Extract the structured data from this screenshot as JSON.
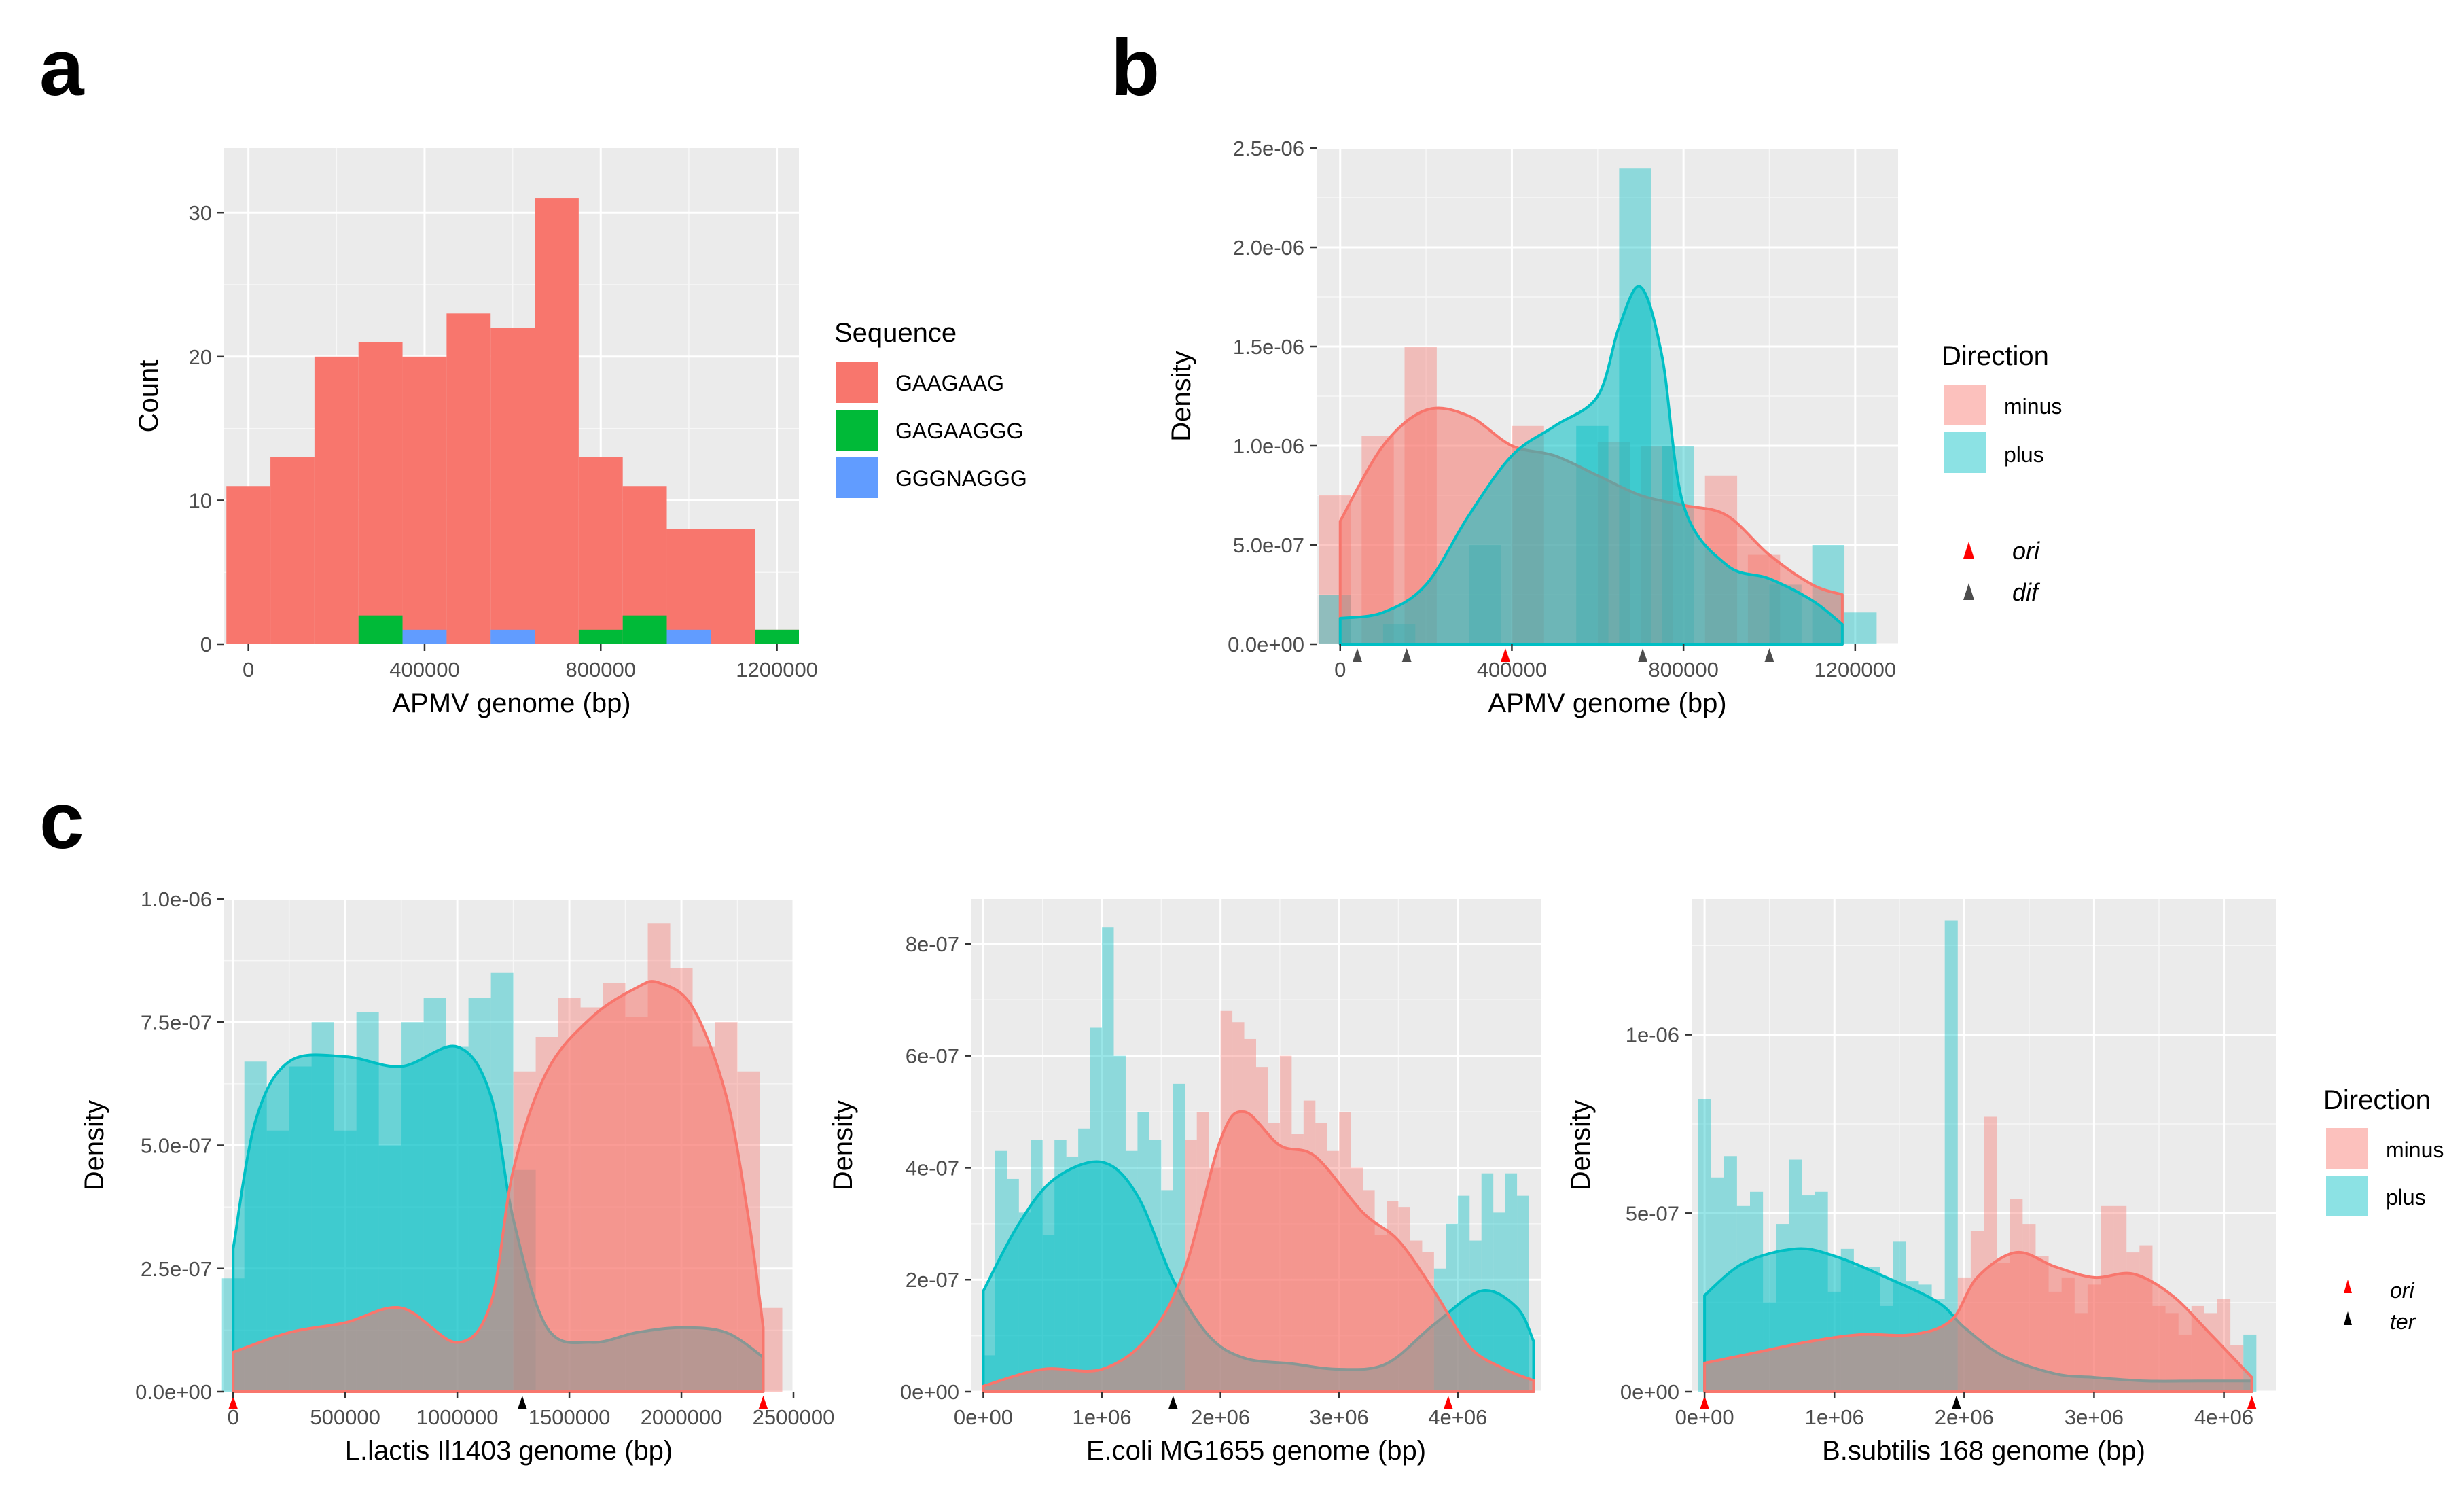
{
  "panel_labels": {
    "a": "a",
    "b": "b",
    "c": "c"
  },
  "colors": {
    "panel_bg": "#ebebeb",
    "grid": "#ffffff",
    "minus": "#f8766d",
    "plus": "#00bfc4",
    "gaagaag": "#f8766d",
    "gagaaggg": "#00ba38",
    "gggnaggg": "#619cff",
    "ori": "#ff0000",
    "dif": "#4d4d4d",
    "ter": "#000000"
  },
  "chart_data": [
    {
      "id": "a",
      "type": "bar",
      "title": "",
      "xlabel": "APMV genome (bp)",
      "ylabel": "Count",
      "xlim": [
        -55000,
        1250000
      ],
      "ylim": [
        0,
        34.5
      ],
      "xticks": [
        0,
        400000,
        800000,
        1200000
      ],
      "xtick_labels": [
        "0",
        "400000",
        "800000",
        "1200000"
      ],
      "yticks": [
        0,
        10,
        20,
        30
      ],
      "ytick_labels": [
        "0",
        "10",
        "20",
        "30"
      ],
      "legend": {
        "title": "Sequence",
        "position": "right",
        "items": [
          "GAAGAAG",
          "GAGAAGGG",
          "GGGNAGGG"
        ]
      },
      "bin_width": 100000,
      "bin_starts": [
        -50000,
        50000,
        150000,
        250000,
        350000,
        450000,
        550000,
        650000,
        750000,
        850000,
        950000,
        1050000,
        1150000
      ],
      "series": [
        {
          "name": "GAAGAAG",
          "values": [
            11,
            13,
            20,
            21,
            20,
            23,
            22,
            31,
            13,
            11,
            8,
            8,
            1
          ]
        },
        {
          "name": "GAGAAGGG",
          "values": [
            0,
            0,
            0,
            2,
            0,
            0,
            0,
            0,
            1,
            2,
            0,
            0,
            1
          ]
        },
        {
          "name": "GGGNAGGG",
          "values": [
            0,
            0,
            0,
            0,
            1,
            0,
            1,
            0,
            0,
            0,
            1,
            0,
            0
          ]
        }
      ]
    },
    {
      "id": "b",
      "type": "area",
      "title": "",
      "xlabel": "APMV genome (bp)",
      "ylabel": "Density",
      "xlim": [
        -55000,
        1300000
      ],
      "ylim": [
        0,
        2.5e-06
      ],
      "xticks": [
        0,
        400000,
        800000,
        1200000
      ],
      "xtick_labels": [
        "0",
        "400000",
        "800000",
        "1200000"
      ],
      "yticks": [
        0,
        5e-07,
        1e-06,
        1.5e-06,
        2e-06,
        2.5e-06
      ],
      "ytick_labels": [
        "0.0e+00",
        "5.0e-07",
        "1.0e-06",
        "1.5e-06",
        "2.0e-06",
        "2.5e-06"
      ],
      "legend": {
        "title": "Direction",
        "position": "right",
        "items": [
          "minus",
          "plus"
        ]
      },
      "markers": [
        {
          "label": "ori",
          "color": "#ff0000",
          "positions": [
            385000
          ]
        },
        {
          "label": "dif",
          "color": "#4d4d4d",
          "positions": [
            40000,
            155000,
            705000,
            1000000
          ]
        }
      ],
      "bin_width": 75000,
      "hist": [
        {
          "name": "minus",
          "starts": [
            -50000,
            50000,
            150000,
            400000,
            600000,
            700000,
            850000,
            950000
          ],
          "values": [
            7.5e-07,
            1.05e-06,
            1.5e-06,
            1.1e-06,
            1.02e-06,
            1e-06,
            8.5e-07,
            4.5e-07
          ]
        },
        {
          "name": "plus",
          "starts": [
            -50000,
            100000,
            300000,
            550000,
            650000,
            750000,
            1000000,
            1100000,
            1175000
          ],
          "values": [
            2.5e-07,
            1e-07,
            5e-07,
            1.1e-06,
            2.4e-06,
            1e-06,
            3e-07,
            5e-07,
            1.6e-07
          ]
        }
      ],
      "density": [
        {
          "name": "minus",
          "x": [
            0,
            100000,
            200000,
            300000,
            400000,
            500000,
            600000,
            700000,
            800000,
            900000,
            1000000,
            1100000,
            1170000
          ],
          "y": [
            6.2e-07,
            1e-06,
            1.18e-06,
            1.15e-06,
            1e-06,
            9.5e-07,
            8.5e-07,
            7.5e-07,
            7e-07,
            6.5e-07,
            4.5e-07,
            3e-07,
            2.5e-07
          ]
        },
        {
          "name": "plus",
          "x": [
            0,
            100000,
            200000,
            300000,
            400000,
            500000,
            600000,
            650000,
            700000,
            750000,
            800000,
            900000,
            1000000,
            1100000,
            1170000
          ],
          "y": [
            1.3e-07,
            1.6e-07,
            3e-07,
            6.5e-07,
            9.5e-07,
            1.1e-06,
            1.25e-06,
            1.6e-06,
            1.8e-06,
            1.45e-06,
            7e-07,
            4e-07,
            3.3e-07,
            2.2e-07,
            1e-07
          ]
        }
      ]
    },
    {
      "id": "c1",
      "type": "area",
      "title": "",
      "xlabel": "L.lactis Il1403 genome (bp)",
      "ylabel": "Density",
      "xlim": [
        -40000,
        2500000
      ],
      "ylim": [
        0,
        1e-06
      ],
      "xticks": [
        0,
        500000,
        1000000,
        1500000,
        2000000,
        2500000
      ],
      "xtick_labels": [
        "0",
        "500000",
        "1000000",
        "1500000",
        "2000000",
        "2500000"
      ],
      "yticks": [
        0,
        2.5e-07,
        5e-07,
        7.5e-07,
        1e-06
      ],
      "ytick_labels": [
        "0.0e+00",
        "2.5e-07",
        "5.0e-07",
        "7.5e-07",
        "1.0e-06"
      ],
      "markers": [
        {
          "label": "ori",
          "color": "#ff0000",
          "positions": [
            0,
            2365000
          ]
        },
        {
          "label": "ter",
          "color": "#000000",
          "positions": [
            1290000
          ]
        }
      ],
      "bin_width": 100000,
      "hist": [
        {
          "name": "plus",
          "starts": [
            -50000,
            50000,
            150000,
            250000,
            350000,
            450000,
            550000,
            650000,
            750000,
            850000,
            950000,
            1050000,
            1150000,
            1250000
          ],
          "values": [
            2.3e-07,
            6.7e-07,
            5.3e-07,
            6.6e-07,
            7.5e-07,
            5.3e-07,
            7.7e-07,
            5e-07,
            7.5e-07,
            8e-07,
            7e-07,
            8e-07,
            8.5e-07,
            4.5e-07
          ]
        },
        {
          "name": "minus",
          "starts": [
            1250000,
            1350000,
            1450000,
            1550000,
            1650000,
            1750000,
            1850000,
            1950000,
            2050000,
            2150000,
            2250000,
            2350000
          ],
          "values": [
            6.5e-07,
            7.2e-07,
            8e-07,
            7.8e-07,
            8.3e-07,
            7.6e-07,
            9.5e-07,
            8.6e-07,
            7e-07,
            7.5e-07,
            6.5e-07,
            1.7e-07
          ]
        }
      ],
      "density": [
        {
          "name": "plus",
          "x": [
            0,
            100000,
            250000,
            500000,
            750000,
            1000000,
            1150000,
            1250000,
            1400000,
            1600000,
            1800000,
            2000000,
            2200000,
            2365000
          ],
          "y": [
            2.9e-07,
            5.5e-07,
            6.7e-07,
            6.8e-07,
            6.6e-07,
            7e-07,
            6e-07,
            3.5e-07,
            1.3e-07,
            1e-07,
            1.2e-07,
            1.3e-07,
            1.2e-07,
            7e-08
          ]
        },
        {
          "name": "minus",
          "x": [
            0,
            250000,
            500000,
            750000,
            1000000,
            1150000,
            1250000,
            1400000,
            1600000,
            1800000,
            1900000,
            2050000,
            2200000,
            2300000,
            2365000
          ],
          "y": [
            8e-08,
            1.2e-07,
            1.4e-07,
            1.7e-07,
            1e-07,
            1.8e-07,
            4.5e-07,
            6.5e-07,
            7.6e-07,
            8.2e-07,
            8.3e-07,
            7.8e-07,
            6e-07,
            3.5e-07,
            1.3e-07
          ]
        }
      ]
    },
    {
      "id": "c2",
      "type": "area",
      "title": "",
      "xlabel": "E.coli MG1655 genome (bp)",
      "ylabel": "Density",
      "xlim": [
        -100000,
        4700000
      ],
      "ylim": [
        0,
        8.8e-07
      ],
      "xticks": [
        0,
        1000000,
        2000000,
        3000000,
        4000000
      ],
      "xtick_labels": [
        "0e+00",
        "1e+06",
        "2e+06",
        "3e+06",
        "4e+06"
      ],
      "yticks": [
        0,
        2e-07,
        4e-07,
        6e-07,
        8e-07
      ],
      "ytick_labels": [
        "0e+00",
        "2e-07",
        "4e-07",
        "6e-07",
        "8e-07"
      ],
      "markers": [
        {
          "label": "ori",
          "color": "#ff0000",
          "positions": [
            3920000
          ]
        },
        {
          "label": "ter",
          "color": "#000000",
          "positions": [
            1600000
          ]
        }
      ],
      "bin_width": 100000,
      "hist": [
        {
          "name": "plus",
          "starts": [
            0,
            100000,
            200000,
            300000,
            400000,
            500000,
            600000,
            700000,
            800000,
            900000,
            1000000,
            1100000,
            1200000,
            1300000,
            1400000,
            1500000,
            1600000,
            3800000,
            3900000,
            4000000,
            4100000,
            4200000,
            4300000,
            4400000,
            4500000
          ],
          "values": [
            6.5e-08,
            4.3e-07,
            3.8e-07,
            3.2e-07,
            4.5e-07,
            2.8e-07,
            4.5e-07,
            4.2e-07,
            4.7e-07,
            6.5e-07,
            8.3e-07,
            6e-07,
            4.3e-07,
            5e-07,
            4.5e-07,
            3.6e-07,
            5.5e-07,
            2.2e-07,
            3e-07,
            3.5e-07,
            2.7e-07,
            3.9e-07,
            3.2e-07,
            3.9e-07,
            3.5e-07
          ]
        },
        {
          "name": "minus",
          "starts": [
            1700000,
            1800000,
            1900000,
            2000000,
            2100000,
            2200000,
            2300000,
            2400000,
            2500000,
            2600000,
            2700000,
            2800000,
            2900000,
            3000000,
            3100000,
            3200000,
            3300000,
            3400000,
            3500000,
            3600000,
            3700000
          ],
          "values": [
            4.5e-07,
            5e-07,
            4e-07,
            6.8e-07,
            6.6e-07,
            6.3e-07,
            5.8e-07,
            4.8e-07,
            6e-07,
            4.6e-07,
            5.2e-07,
            4.8e-07,
            4.3e-07,
            5e-07,
            4e-07,
            3.6e-07,
            2.8e-07,
            3.4e-07,
            3.3e-07,
            2.7e-07,
            2.5e-07
          ]
        }
      ],
      "density": [
        {
          "name": "plus",
          "x": [
            0,
            300000,
            600000,
            1000000,
            1300000,
            1600000,
            1900000,
            2200000,
            2600000,
            3000000,
            3400000,
            3800000,
            4200000,
            4500000,
            4640000
          ],
          "y": [
            1.8e-07,
            3e-07,
            3.8e-07,
            4.1e-07,
            3.5e-07,
            2e-07,
            1e-07,
            6e-08,
            5e-08,
            4e-08,
            5e-08,
            1.2e-07,
            1.8e-07,
            1.5e-07,
            9e-08
          ]
        },
        {
          "name": "minus",
          "x": [
            0,
            500000,
            1000000,
            1400000,
            1700000,
            2000000,
            2200000,
            2500000,
            2800000,
            3200000,
            3500000,
            3800000,
            4100000,
            4400000,
            4640000
          ],
          "y": [
            1e-08,
            4e-08,
            4e-08,
            1e-07,
            2.2e-07,
            4.5e-07,
            5e-07,
            4.4e-07,
            4.2e-07,
            3.2e-07,
            2.7e-07,
            1.8e-07,
            8e-08,
            4e-08,
            2e-08
          ]
        }
      ]
    },
    {
      "id": "c3",
      "type": "area",
      "title": "",
      "xlabel": "B.subtilis 168 genome (bp)",
      "ylabel": "Density",
      "xlim": [
        -100000,
        4400000
      ],
      "ylim": [
        0,
        1.38e-06
      ],
      "xticks": [
        0,
        1000000,
        2000000,
        3000000,
        4000000
      ],
      "xtick_labels": [
        "0e+00",
        "1e+06",
        "2e+06",
        "3e+06",
        "4e+06"
      ],
      "yticks": [
        0,
        5e-07,
        1e-06
      ],
      "ytick_labels": [
        "0e+00",
        "5e-07",
        "1e-06"
      ],
      "legend": {
        "title": "Direction",
        "position": "right",
        "items": [
          "minus",
          "plus"
        ]
      },
      "markers": [
        {
          "label": "ori",
          "color": "#ff0000",
          "positions": [
            0,
            4215000
          ]
        },
        {
          "label": "ter",
          "color": "#000000",
          "positions": [
            1940000
          ]
        }
      ],
      "bin_width": 100000,
      "hist": [
        {
          "name": "plus",
          "starts": [
            -50000,
            50000,
            150000,
            250000,
            350000,
            450000,
            550000,
            650000,
            750000,
            850000,
            950000,
            1050000,
            1150000,
            1250000,
            1350000,
            1450000,
            1550000,
            1650000,
            1750000,
            1850000,
            4150000
          ],
          "values": [
            8.2e-07,
            6e-07,
            6.6e-07,
            5.2e-07,
            5.6e-07,
            2.5e-07,
            4.7e-07,
            6.5e-07,
            5.5e-07,
            5.6e-07,
            2.8e-07,
            4e-07,
            3.5e-07,
            3.5e-07,
            2.4e-07,
            4.2e-07,
            3.1e-07,
            3e-07,
            2.6e-07,
            1.32e-06,
            1.6e-07
          ]
        },
        {
          "name": "minus",
          "starts": [
            1950000,
            2050000,
            2150000,
            2250000,
            2350000,
            2450000,
            2550000,
            2650000,
            2750000,
            2850000,
            2950000,
            3050000,
            3150000,
            3250000,
            3350000,
            3450000,
            3550000,
            3650000,
            3750000,
            3850000,
            3950000,
            4050000
          ],
          "values": [
            3.2e-07,
            4.5e-07,
            7.7e-07,
            3.6e-07,
            5.4e-07,
            4.7e-07,
            3.8e-07,
            2.8e-07,
            3.2e-07,
            2.2e-07,
            3e-07,
            5.2e-07,
            5.2e-07,
            3.9e-07,
            4.1e-07,
            2.4e-07,
            2.2e-07,
            1.6e-07,
            2.4e-07,
            2.2e-07,
            2.6e-07,
            1.3e-07
          ]
        }
      ],
      "density": [
        {
          "name": "plus",
          "x": [
            0,
            300000,
            700000,
            1000000,
            1400000,
            1800000,
            2000000,
            2300000,
            2700000,
            3000000,
            3400000,
            3800000,
            4215000
          ],
          "y": [
            2.7e-07,
            3.6e-07,
            4e-07,
            3.8e-07,
            3.2e-07,
            2.5e-07,
            1.8e-07,
            1e-07,
            5e-08,
            4e-08,
            3e-08,
            3e-08,
            3e-08
          ]
        },
        {
          "name": "minus",
          "x": [
            0,
            400000,
            800000,
            1200000,
            1600000,
            1900000,
            2100000,
            2400000,
            2700000,
            3000000,
            3300000,
            3600000,
            3900000,
            4215000
          ],
          "y": [
            8e-08,
            1.1e-07,
            1.4e-07,
            1.6e-07,
            1.6e-07,
            2e-07,
            3.2e-07,
            3.9e-07,
            3.5e-07,
            3.2e-07,
            3.3e-07,
            2.7e-07,
            1.6e-07,
            4e-08
          ]
        }
      ]
    }
  ],
  "legend_a": {
    "title": "Sequence",
    "items": [
      "GAAGAAG",
      "GAGAAGGG",
      "GGGNAGGG"
    ]
  },
  "legend_b": {
    "title": "Direction",
    "minus": "minus",
    "plus": "plus",
    "ori": "ori",
    "dif": "dif"
  },
  "legend_c": {
    "title": "Direction",
    "minus": "minus",
    "plus": "plus",
    "ori": "ori",
    "ter": "ter"
  }
}
